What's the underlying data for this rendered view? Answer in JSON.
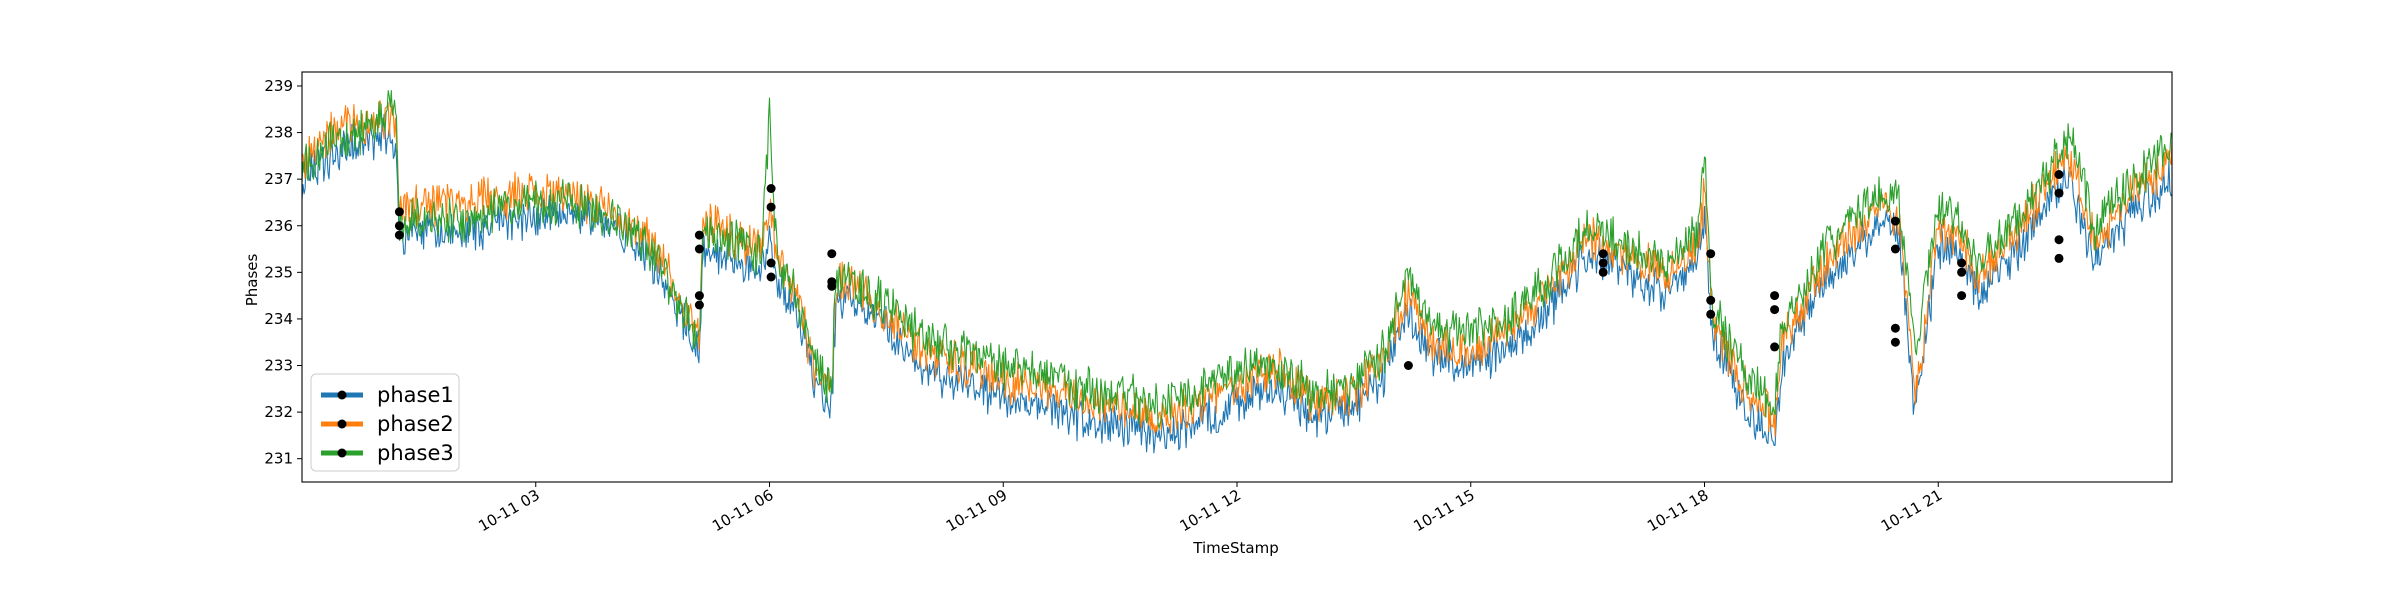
{
  "chart_data": {
    "type": "line",
    "xlabel": "TimeStamp",
    "ylabel": "Phases",
    "ylim": [
      230.5,
      239.3
    ],
    "xlim": [
      "10-11 00:00",
      "24:00"
    ],
    "y_ticks": [
      231,
      232,
      233,
      234,
      235,
      236,
      237,
      238,
      239
    ],
    "x_ticks": [
      {
        "hour": 3,
        "label": "10-11 03"
      },
      {
        "hour": 6,
        "label": "10-11 06"
      },
      {
        "hour": 9,
        "label": "10-11 09"
      },
      {
        "hour": 12,
        "label": "10-11 12"
      },
      {
        "hour": 15,
        "label": "10-11 15"
      },
      {
        "hour": 18,
        "label": "10-11 18"
      },
      {
        "hour": 21,
        "label": "10-11 21"
      }
    ],
    "legend_position": "lower-left",
    "series": [
      {
        "name": "phase1",
        "color": "#1f77b4",
        "x": [
          0,
          0.3,
          0.6,
          0.9,
          1.2,
          1.25,
          1.5,
          2.0,
          2.5,
          3.0,
          3.5,
          4.0,
          4.5,
          5.0,
          5.1,
          5.15,
          5.5,
          5.9,
          6.0,
          6.1,
          6.3,
          6.6,
          6.8,
          6.85,
          7.0,
          7.5,
          8.0,
          8.5,
          9.0,
          9.5,
          10.0,
          10.5,
          11.0,
          11.5,
          12.0,
          12.5,
          13.0,
          13.5,
          13.9,
          14.2,
          14.5,
          15.0,
          15.5,
          16.0,
          16.5,
          17.0,
          17.5,
          17.9,
          18.0,
          18.1,
          18.5,
          18.9,
          19.0,
          19.3,
          19.6,
          20.0,
          20.3,
          20.5,
          20.7,
          21.0,
          21.3,
          21.5,
          22.0,
          22.5,
          22.7,
          23.0,
          23.5,
          24.0
        ],
        "y": [
          236.9,
          237.4,
          237.7,
          237.8,
          237.9,
          235.7,
          235.9,
          235.8,
          236.1,
          236.2,
          236.2,
          236.0,
          235.2,
          233.6,
          233.3,
          235.6,
          235.3,
          235.0,
          235.8,
          234.8,
          234.4,
          232.5,
          232.2,
          234.2,
          234.5,
          233.8,
          232.9,
          232.6,
          232.3,
          232.1,
          231.9,
          231.7,
          231.4,
          231.8,
          232.2,
          232.5,
          231.9,
          232.1,
          232.8,
          234.3,
          233.1,
          233.0,
          233.4,
          234.2,
          235.4,
          235.0,
          234.6,
          235.2,
          236.3,
          233.7,
          232.2,
          231.3,
          233.1,
          234.2,
          234.9,
          235.6,
          236.2,
          235.9,
          231.9,
          235.6,
          235.3,
          234.5,
          235.4,
          236.7,
          237.0,
          235.2,
          236.3,
          237.0
        ]
      },
      {
        "name": "phase2",
        "color": "#ff7f0e",
        "x": [
          0,
          0.3,
          0.6,
          0.9,
          1.2,
          1.25,
          1.5,
          2.0,
          2.5,
          3.0,
          3.5,
          4.0,
          4.5,
          5.0,
          5.1,
          5.15,
          5.5,
          5.9,
          6.0,
          6.1,
          6.3,
          6.6,
          6.8,
          6.85,
          7.0,
          7.5,
          8.0,
          8.5,
          9.0,
          9.5,
          10.0,
          10.5,
          11.0,
          11.5,
          12.0,
          12.5,
          13.0,
          13.5,
          13.9,
          14.2,
          14.5,
          15.0,
          15.5,
          16.0,
          16.5,
          17.0,
          17.5,
          17.9,
          18.0,
          18.1,
          18.5,
          18.9,
          19.0,
          19.3,
          19.6,
          20.0,
          20.3,
          20.5,
          20.7,
          21.0,
          21.3,
          21.5,
          22.0,
          22.5,
          22.7,
          23.0,
          23.5,
          24.0
        ],
        "y": [
          237.4,
          237.9,
          238.2,
          238.3,
          238.4,
          236.2,
          236.5,
          236.5,
          236.6,
          236.7,
          236.6,
          236.3,
          235.6,
          234.0,
          233.6,
          236.0,
          235.8,
          235.5,
          236.3,
          235.2,
          234.8,
          232.8,
          232.5,
          234.6,
          234.8,
          234.1,
          233.3,
          233.0,
          232.7,
          232.5,
          232.3,
          232.1,
          231.8,
          232.2,
          232.6,
          232.9,
          232.2,
          232.4,
          233.1,
          234.7,
          233.4,
          233.4,
          233.7,
          234.5,
          235.8,
          235.4,
          234.9,
          235.5,
          236.7,
          234.0,
          232.6,
          231.8,
          233.5,
          234.5,
          235.3,
          236.0,
          236.5,
          236.2,
          232.2,
          236.0,
          235.7,
          234.9,
          235.8,
          237.1,
          237.5,
          235.6,
          236.7,
          237.4
        ]
      },
      {
        "name": "phase3",
        "color": "#2ca02c",
        "x": [
          0,
          0.3,
          0.6,
          0.9,
          1.2,
          1.25,
          1.5,
          2.0,
          2.5,
          3.0,
          3.5,
          4.0,
          4.5,
          5.0,
          5.1,
          5.15,
          5.5,
          5.9,
          6.0,
          6.1,
          6.3,
          6.6,
          6.8,
          6.85,
          7.0,
          7.5,
          8.0,
          8.5,
          9.0,
          9.5,
          10.0,
          10.5,
          11.0,
          11.5,
          12.0,
          12.5,
          13.0,
          13.5,
          13.9,
          14.2,
          14.5,
          15.0,
          15.5,
          16.0,
          16.5,
          17.0,
          17.5,
          17.9,
          18.0,
          18.1,
          18.5,
          18.9,
          19.0,
          19.3,
          19.6,
          20.0,
          20.3,
          20.5,
          20.7,
          21.0,
          21.3,
          21.5,
          22.0,
          22.5,
          22.7,
          23.0,
          23.5,
          24.0
        ],
        "y": [
          237.2,
          237.7,
          237.9,
          238.1,
          238.6,
          236.0,
          236.2,
          236.1,
          236.4,
          236.5,
          236.5,
          236.2,
          235.5,
          233.8,
          233.4,
          235.9,
          235.7,
          235.3,
          238.4,
          235.1,
          234.7,
          232.9,
          232.6,
          234.8,
          234.9,
          234.3,
          233.6,
          233.3,
          233.0,
          232.8,
          232.5,
          232.4,
          232.1,
          232.5,
          232.9,
          233.1,
          232.4,
          232.6,
          233.3,
          234.9,
          233.7,
          233.7,
          234.0,
          234.8,
          236.0,
          235.6,
          235.2,
          235.8,
          237.5,
          234.2,
          232.9,
          232.1,
          233.8,
          234.8,
          235.6,
          236.3,
          236.8,
          236.5,
          233.2,
          236.3,
          236.0,
          235.2,
          236.1,
          237.4,
          238.0,
          235.9,
          237.0,
          237.7
        ]
      }
    ],
    "markers": {
      "color": "#000000",
      "points": [
        {
          "x": 1.25,
          "y": 236.3
        },
        {
          "x": 1.25,
          "y": 236.0
        },
        {
          "x": 1.25,
          "y": 235.8
        },
        {
          "x": 5.1,
          "y": 235.8
        },
        {
          "x": 5.1,
          "y": 235.5
        },
        {
          "x": 5.1,
          "y": 234.5
        },
        {
          "x": 5.1,
          "y": 234.3
        },
        {
          "x": 6.02,
          "y": 236.8
        },
        {
          "x": 6.02,
          "y": 236.4
        },
        {
          "x": 6.02,
          "y": 235.2
        },
        {
          "x": 6.02,
          "y": 234.9
        },
        {
          "x": 6.8,
          "y": 235.4
        },
        {
          "x": 6.8,
          "y": 234.8
        },
        {
          "x": 6.8,
          "y": 234.7
        },
        {
          "x": 14.2,
          "y": 233.0
        },
        {
          "x": 16.7,
          "y": 235.4
        },
        {
          "x": 16.7,
          "y": 235.2
        },
        {
          "x": 16.7,
          "y": 235.0
        },
        {
          "x": 18.08,
          "y": 235.4
        },
        {
          "x": 18.08,
          "y": 234.4
        },
        {
          "x": 18.08,
          "y": 234.1
        },
        {
          "x": 18.9,
          "y": 234.5
        },
        {
          "x": 18.9,
          "y": 234.2
        },
        {
          "x": 18.9,
          "y": 233.4
        },
        {
          "x": 20.45,
          "y": 236.1
        },
        {
          "x": 20.45,
          "y": 235.5
        },
        {
          "x": 20.45,
          "y": 233.8
        },
        {
          "x": 20.45,
          "y": 233.5
        },
        {
          "x": 21.3,
          "y": 235.2
        },
        {
          "x": 21.3,
          "y": 235.0
        },
        {
          "x": 21.3,
          "y": 234.5
        },
        {
          "x": 22.55,
          "y": 237.1
        },
        {
          "x": 22.55,
          "y": 236.7
        },
        {
          "x": 22.55,
          "y": 235.7
        },
        {
          "x": 22.55,
          "y": 235.3
        }
      ]
    }
  }
}
